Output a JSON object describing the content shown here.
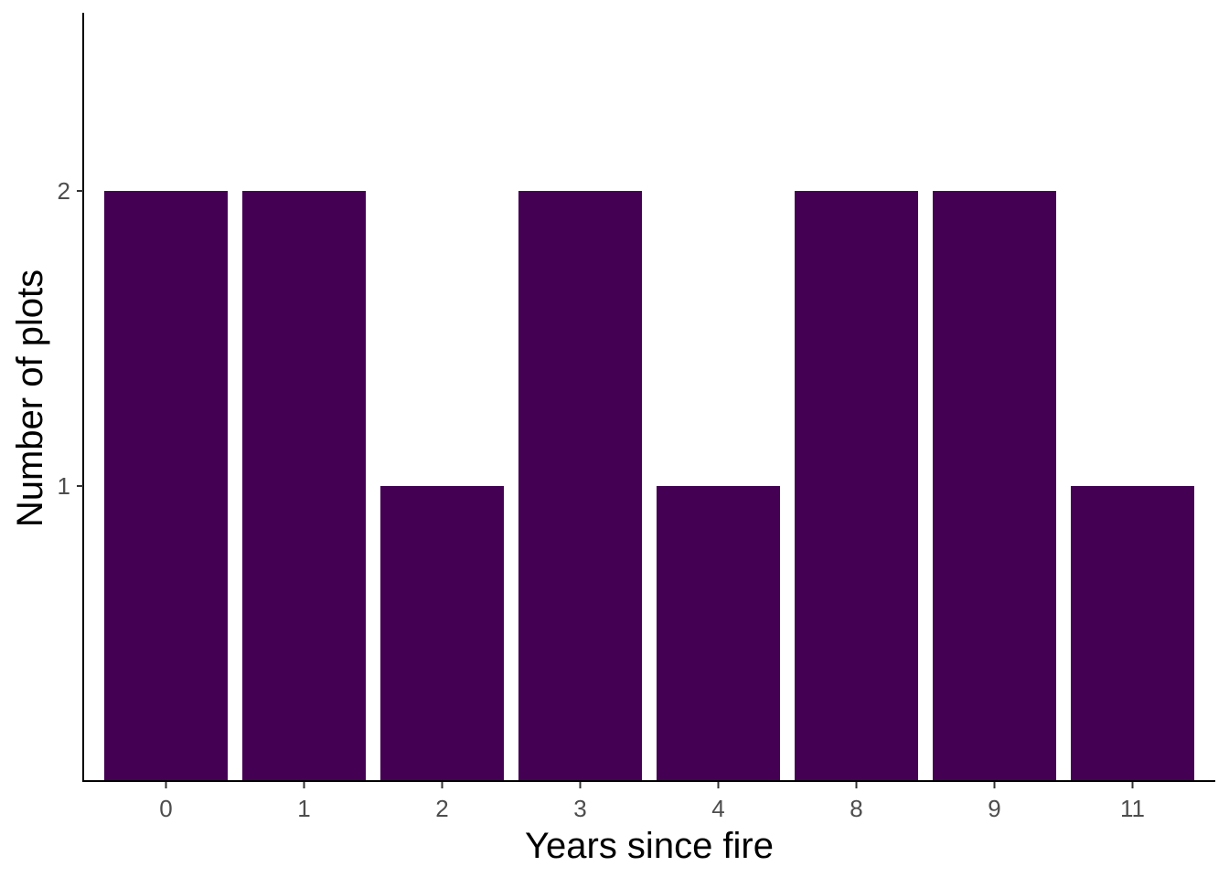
{
  "chart_data": {
    "type": "bar",
    "title": "",
    "xlabel": "Years since fire",
    "ylabel": "Number of plots",
    "categories": [
      "0",
      "1",
      "2",
      "3",
      "4",
      "8",
      "9",
      "11"
    ],
    "values": [
      2,
      2,
      1,
      2,
      1,
      2,
      2,
      1
    ],
    "ylim": [
      0,
      2.6
    ],
    "yticks": [
      1,
      2
    ],
    "grid": false,
    "bar_color": "#440154"
  }
}
